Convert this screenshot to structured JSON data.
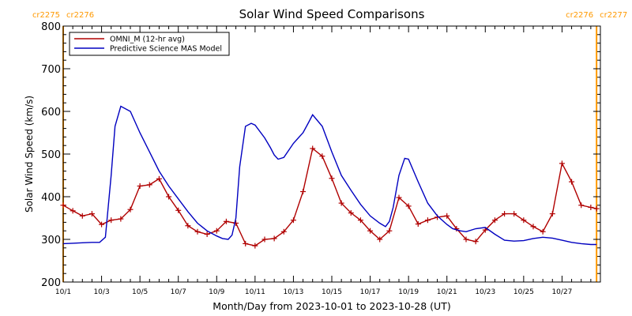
{
  "chart_data": {
    "type": "line",
    "title": "Solar Wind Speed Comparisons",
    "xlabel": "Month/Day from 2023-10-01 to 2023-10-28 (UT)",
    "ylabel": "Solar Wind Speed (km/s)",
    "xlim": [
      1,
      29
    ],
    "ylim": [
      200,
      800
    ],
    "x_ticks": [
      {
        "x": 1,
        "label": "10/1"
      },
      {
        "x": 3,
        "label": "10/3"
      },
      {
        "x": 5,
        "label": "10/5"
      },
      {
        "x": 7,
        "label": "10/7"
      },
      {
        "x": 9,
        "label": "10/9"
      },
      {
        "x": 11,
        "label": "10/11"
      },
      {
        "x": 13,
        "label": "10/13"
      },
      {
        "x": 15,
        "label": "10/15"
      },
      {
        "x": 17,
        "label": "10/17"
      },
      {
        "x": 19,
        "label": "10/19"
      },
      {
        "x": 21,
        "label": "10/21"
      },
      {
        "x": 23,
        "label": "10/23"
      },
      {
        "x": 25,
        "label": "10/25"
      },
      {
        "x": 27,
        "label": "10/27"
      }
    ],
    "y_ticks": [
      200,
      300,
      400,
      500,
      600,
      700,
      800
    ],
    "legend_position": "top-left",
    "x_unit_note": "x values are day of October 2023 (fractional, 12-hr steps)",
    "carrington_markers": [
      {
        "x": 1.0,
        "label_left": "cr2275",
        "label_right": "cr2276",
        "color": "#ff9900"
      },
      {
        "x": 28.8,
        "label_left": "cr2276",
        "label_right": "cr2277",
        "color": "#ff9900"
      }
    ],
    "series": [
      {
        "name": "OMNI_M (12-hr avg)",
        "color": "#b00000",
        "marker": "+",
        "x": [
          1.0,
          1.5,
          2.0,
          2.5,
          3.0,
          3.5,
          4.0,
          4.5,
          5.0,
          5.5,
          6.0,
          6.5,
          7.0,
          7.5,
          8.0,
          8.5,
          9.0,
          9.5,
          10.0,
          10.5,
          11.0,
          11.5,
          12.0,
          12.5,
          13.0,
          13.5,
          14.0,
          14.5,
          15.0,
          15.5,
          16.0,
          16.5,
          17.0,
          17.5,
          18.0,
          18.5,
          19.0,
          19.5,
          20.0,
          20.5,
          21.0,
          21.5,
          22.0,
          22.5,
          23.0,
          23.5,
          24.0,
          24.5,
          25.0,
          25.5,
          26.0,
          26.5,
          27.0,
          27.5,
          28.0,
          28.5,
          28.8
        ],
        "y": [
          380,
          367,
          355,
          360,
          335,
          345,
          348,
          370,
          425,
          428,
          442,
          400,
          368,
          332,
          318,
          312,
          320,
          342,
          338,
          290,
          285,
          300,
          302,
          318,
          345,
          412,
          513,
          495,
          443,
          385,
          362,
          345,
          320,
          300,
          320,
          398,
          378,
          336,
          345,
          352,
          355,
          325,
          300,
          295,
          322,
          345,
          360,
          360,
          345,
          330,
          318,
          360,
          478,
          435,
          380,
          375,
          372
        ]
      },
      {
        "name": "Predictive Science MAS Model",
        "color": "#0000c0",
        "marker": "",
        "x": [
          1.0,
          1.5,
          2.0,
          2.5,
          2.9,
          3.2,
          3.5,
          3.7,
          4.0,
          4.5,
          5.0,
          5.5,
          6.0,
          6.5,
          7.0,
          7.5,
          8.0,
          8.5,
          9.0,
          9.3,
          9.6,
          9.8,
          10.0,
          10.2,
          10.5,
          10.8,
          11.0,
          11.5,
          11.8,
          12.0,
          12.2,
          12.5,
          13.0,
          13.3,
          13.5,
          13.8,
          14.0,
          14.5,
          15.0,
          15.5,
          16.0,
          16.5,
          17.0,
          17.5,
          17.8,
          18.0,
          18.2,
          18.5,
          18.8,
          19.0,
          19.5,
          20.0,
          20.5,
          21.0,
          21.3,
          21.7,
          22.0,
          22.5,
          23.0,
          23.5,
          24.0,
          24.5,
          25.0,
          25.5,
          26.0,
          26.5,
          27.0,
          27.5,
          28.0,
          28.5,
          28.8
        ],
        "y": [
          290,
          291,
          292,
          293,
          293,
          305,
          450,
          565,
          612,
          600,
          550,
          505,
          460,
          425,
          395,
          365,
          338,
          320,
          308,
          302,
          300,
          310,
          350,
          470,
          565,
          572,
          568,
          538,
          515,
          498,
          488,
          492,
          525,
          540,
          550,
          575,
          592,
          565,
          505,
          450,
          415,
          382,
          355,
          338,
          330,
          342,
          375,
          450,
          490,
          488,
          435,
          385,
          355,
          335,
          325,
          320,
          318,
          325,
          328,
          312,
          298,
          296,
          297,
          302,
          305,
          303,
          298,
          293,
          290,
          288,
          288
        ]
      }
    ]
  }
}
